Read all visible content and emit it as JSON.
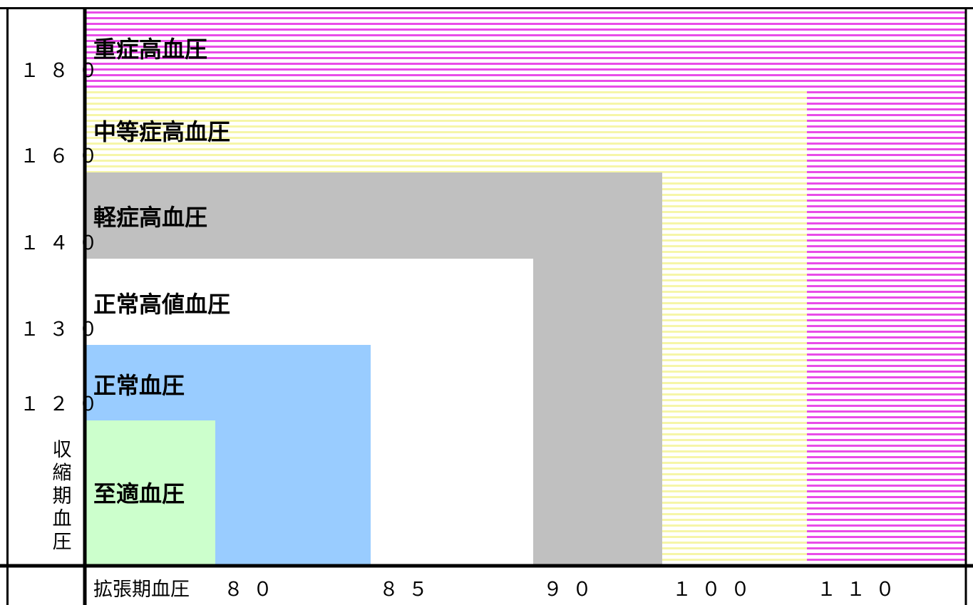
{
  "chart_data": {
    "type": "area",
    "xlabel": "拡張期血圧",
    "ylabel": "収縮期血圧",
    "x_ticks": [
      "８０",
      "８５",
      "９０",
      "１００",
      "１１０"
    ],
    "y_ticks": [
      "１８０",
      "１６０",
      "１４０",
      "１３０",
      "１２０"
    ],
    "categories": [
      {
        "label": "重症高血圧",
        "systolic_min": 180,
        "diastolic_min": 110,
        "color": "#e040e0",
        "pattern": "stripes"
      },
      {
        "label": "中等症高血圧",
        "systolic_min": 160,
        "diastolic_min": 100,
        "color": "#f5f59a",
        "pattern": "stripes"
      },
      {
        "label": "軽症高血圧",
        "systolic_min": 140,
        "diastolic_min": 90,
        "color": "#c0c0c0",
        "pattern": "solid"
      },
      {
        "label": "正常高値血圧",
        "systolic_min": 130,
        "diastolic_min": 85,
        "color": "#ffffff",
        "pattern": "solid"
      },
      {
        "label": "正常血圧",
        "systolic_min": 120,
        "diastolic_min": 80,
        "color": "#99ccff",
        "pattern": "solid"
      },
      {
        "label": "至適血圧",
        "systolic_min": null,
        "diastolic_min": null,
        "color": "#ccffcc",
        "pattern": "solid"
      }
    ]
  }
}
